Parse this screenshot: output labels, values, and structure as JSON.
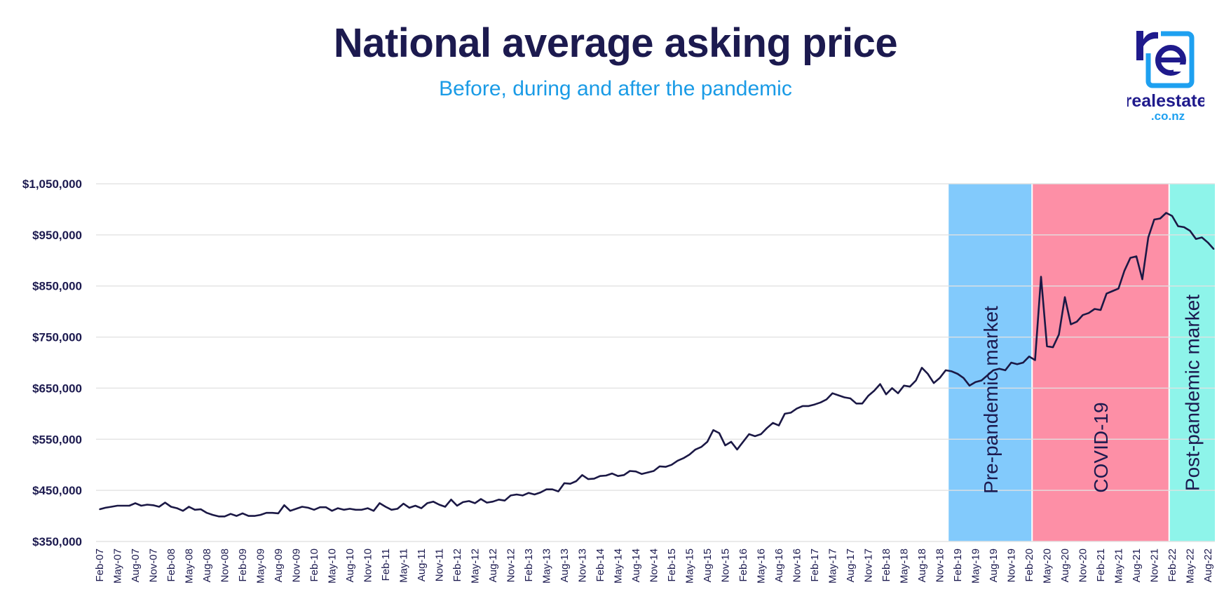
{
  "header": {
    "title": "National average asking price",
    "subtitle": "Before, during and after the pandemic"
  },
  "logo": {
    "word": "realestate",
    "domain": ".co.nz",
    "colors": {
      "dark": "#1f1a8c",
      "light": "#1ea0f0"
    }
  },
  "chart_data": {
    "type": "line",
    "title": "National average asking price",
    "subtitle": "Before, during and after the pandemic",
    "xlabel": "",
    "ylabel": "",
    "x_start": "Feb-07",
    "x_frequency": "monthly",
    "ylim": [
      350000,
      1050000
    ],
    "y_ticks": [
      "$350,000",
      "$450,000",
      "$550,000",
      "$650,000",
      "$750,000",
      "$850,000",
      "$950,000",
      "$1,050,000"
    ],
    "y_tick_values": [
      350000,
      450000,
      550000,
      650000,
      750000,
      850000,
      950000,
      1050000
    ],
    "x_tick_labels": [
      "Feb-07",
      "May-07",
      "Aug-07",
      "Nov-07",
      "Feb-08",
      "May-08",
      "Aug-08",
      "Nov-08",
      "Feb-09",
      "May-09",
      "Aug-09",
      "Nov-09",
      "Feb-10",
      "May-10",
      "Aug-10",
      "Nov-10",
      "Feb-11",
      "May-11",
      "Aug-11",
      "Nov-11",
      "Feb-12",
      "May-12",
      "Aug-12",
      "Nov-12",
      "Feb-13",
      "May-13",
      "Aug-13",
      "Nov-13",
      "Feb-14",
      "May-14",
      "Aug-14",
      "Nov-14",
      "Feb-15",
      "May-15",
      "Aug-15",
      "Nov-15",
      "Feb-16",
      "May-16",
      "Aug-16",
      "Nov-16",
      "Feb-17",
      "May-17",
      "Aug-17",
      "Nov-17",
      "Feb-18",
      "May-18",
      "Aug-18",
      "Nov-18",
      "Feb-19",
      "May-19",
      "Aug-19",
      "Nov-19",
      "Feb-20",
      "May-20",
      "Aug-20",
      "Nov-20",
      "Feb-21",
      "May-21",
      "Aug-21",
      "Nov-21",
      "Feb-22",
      "May-22",
      "Aug-22"
    ],
    "grid": true,
    "line_color": "#1b1845",
    "values": [
      413000,
      416000,
      418000,
      420000,
      420000,
      420000,
      425000,
      420000,
      422000,
      421000,
      418000,
      426000,
      418000,
      415000,
      410000,
      418000,
      412000,
      413000,
      406000,
      402000,
      399000,
      399000,
      404000,
      400000,
      405000,
      400000,
      400000,
      402000,
      406000,
      406000,
      405000,
      421000,
      410000,
      414000,
      418000,
      416000,
      412000,
      417000,
      417000,
      410000,
      415000,
      412000,
      414000,
      412000,
      412000,
      415000,
      410000,
      425000,
      418000,
      412000,
      414000,
      424000,
      416000,
      420000,
      415000,
      425000,
      428000,
      422000,
      418000,
      432000,
      420000,
      427000,
      429000,
      425000,
      433000,
      426000,
      428000,
      432000,
      430000,
      440000,
      442000,
      440000,
      445000,
      442000,
      446000,
      452000,
      452000,
      448000,
      464000,
      463000,
      468000,
      480000,
      472000,
      473000,
      478000,
      479000,
      483000,
      478000,
      480000,
      488000,
      487000,
      482000,
      485000,
      488000,
      497000,
      496000,
      500000,
      508000,
      513000,
      520000,
      530000,
      535000,
      545000,
      568000,
      562000,
      538000,
      545000,
      530000,
      545000,
      560000,
      556000,
      560000,
      572000,
      582000,
      577000,
      600000,
      602000,
      610000,
      615000,
      615000,
      618000,
      622000,
      628000,
      640000,
      636000,
      632000,
      630000,
      620000,
      620000,
      635000,
      645000,
      658000,
      638000,
      650000,
      640000,
      655000,
      653000,
      665000,
      690000,
      678000,
      660000,
      670000,
      685000,
      683000,
      678000,
      670000,
      655000,
      662000,
      665000,
      675000,
      685000,
      688000,
      685000,
      700000,
      697000,
      700000,
      712000,
      705000,
      868000,
      732000,
      730000,
      755000,
      828000,
      775000,
      780000,
      793000,
      797000,
      805000,
      803000,
      835000,
      840000,
      845000,
      880000,
      905000,
      908000,
      863000,
      945000,
      980000,
      982000,
      993000,
      987000,
      967000,
      965000,
      958000,
      942000,
      945000,
      935000,
      922000
    ],
    "bands": [
      {
        "label": "Pre-pandemic market",
        "start": "Jan-19",
        "end": "Mar-20",
        "color": "#82cafc"
      },
      {
        "label": "COVID-19",
        "start": "Mar-20",
        "end": "Feb-22",
        "color": "#fd8fa6"
      },
      {
        "label": "Post-pandemic market",
        "start": "Feb-22",
        "end": "Sep-22",
        "color": "#8ef4ea"
      }
    ]
  }
}
